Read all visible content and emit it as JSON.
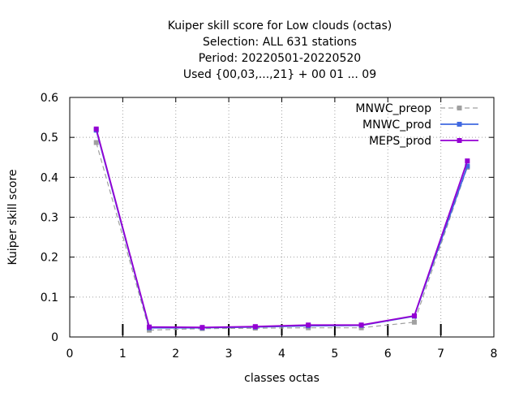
{
  "chart_data": {
    "type": "line",
    "title_lines": [
      "Kuiper skill score  for Low clouds (octas)",
      "Selection: ALL    631 stations",
      "Period: 20220501-20220520",
      "Used {00,03,...,21} + 00 01 ... 09"
    ],
    "xlabel": "classes octas",
    "ylabel": "Kuiper skill score",
    "xlim": [
      0,
      8
    ],
    "ylim": [
      0,
      0.6
    ],
    "xticks": [
      0,
      1,
      2,
      3,
      4,
      5,
      6,
      7,
      8
    ],
    "yticks": [
      0,
      0.1,
      0.2,
      0.3,
      0.4,
      0.5,
      0.6
    ],
    "xtick_labels": [
      "0",
      "1",
      "2",
      "3",
      "4",
      "5",
      "6",
      "7",
      "8"
    ],
    "ytick_labels": [
      "0",
      "0.1",
      "0.2",
      "0.3",
      "0.4",
      "0.5",
      "0.6"
    ],
    "grid": true,
    "legend_position": "top-right",
    "x": [
      0.5,
      1.5,
      2.5,
      3.5,
      4.5,
      5.5,
      6.5,
      7.5
    ],
    "series": [
      {
        "name": "MNWC_preop",
        "color": "#a0a0a0",
        "dashed": true,
        "values": [
          0.487,
          0.017,
          0.021,
          0.022,
          0.023,
          0.023,
          0.037,
          0.425
        ]
      },
      {
        "name": "MNWC_prod",
        "color": "#4169e1",
        "dashed": false,
        "values": [
          0.518,
          0.023,
          0.023,
          0.025,
          0.028,
          0.029,
          0.052,
          0.428
        ]
      },
      {
        "name": "MEPS_prod",
        "color": "#9400d3",
        "dashed": false,
        "values": [
          0.521,
          0.025,
          0.024,
          0.026,
          0.03,
          0.03,
          0.053,
          0.441
        ]
      }
    ],
    "bottom_marks": [
      1,
      2,
      3,
      4,
      5,
      6,
      7
    ]
  }
}
